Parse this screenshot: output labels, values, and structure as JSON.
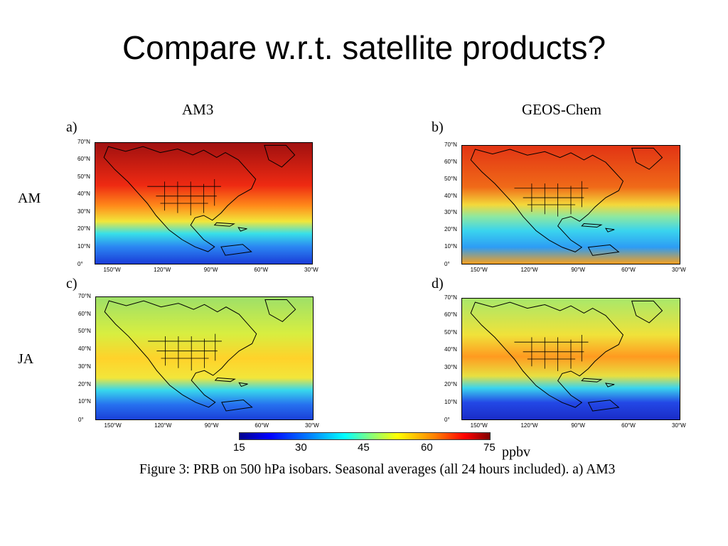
{
  "slide": {
    "title": "Compare w.r.t. satellite products?"
  },
  "figure": {
    "column_headers": [
      "AM3",
      "GEOS-Chem"
    ],
    "row_labels": [
      "AM",
      "JA"
    ],
    "panels": [
      {
        "letter": "a)",
        "model": "AM3",
        "season": "AM"
      },
      {
        "letter": "b)",
        "model": "GEOS-Chem",
        "season": "AM"
      },
      {
        "letter": "c)",
        "model": "AM3",
        "season": "JA"
      },
      {
        "letter": "d)",
        "model": "GEOS-Chem",
        "season": "JA"
      }
    ],
    "lat_labels": [
      "70°N",
      "60°N",
      "50°N",
      "40°N",
      "30°N",
      "20°N",
      "10°N",
      "0°"
    ],
    "lon_labels": [
      "150°W",
      "120°W",
      "90°W",
      "60°W",
      "30°W"
    ],
    "colorbar": {
      "ticks": [
        "15",
        "30",
        "45",
        "60",
        "75"
      ],
      "unit": "ppbv",
      "range": [
        15,
        75
      ],
      "colormap": "jet"
    },
    "caption": "Figure 3: PRB on 500 hPa isobars.  Seasonal averages (all 24 hours included).  a) AM3"
  }
}
